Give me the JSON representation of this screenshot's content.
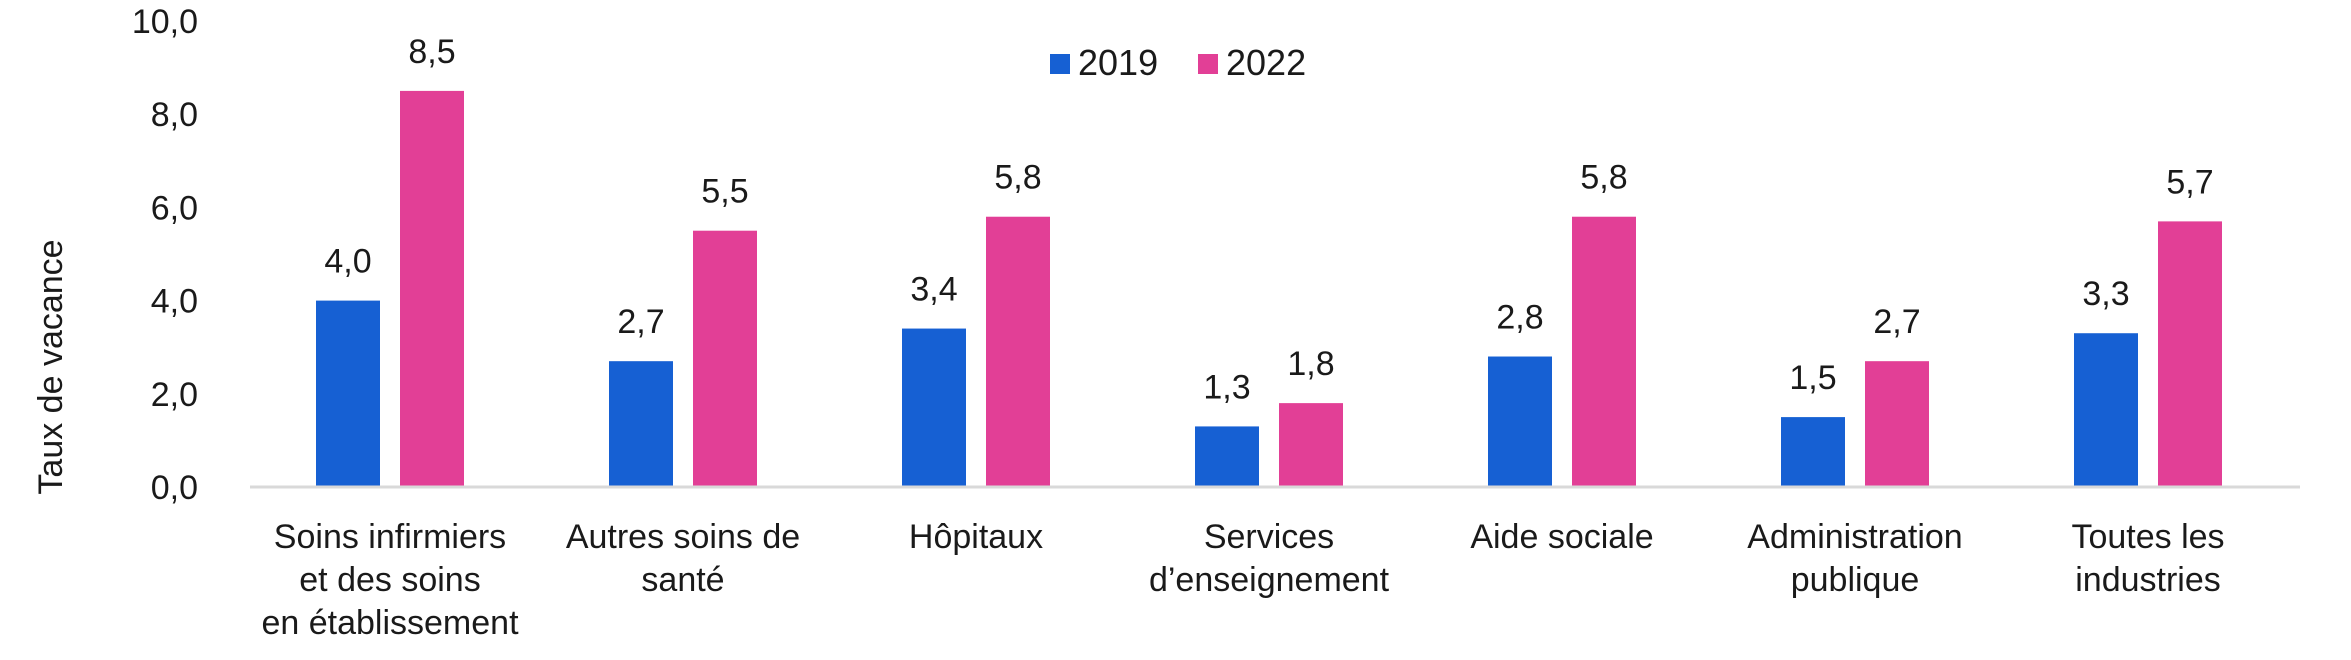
{
  "chart_data": {
    "type": "bar",
    "ylabel": "Taux de vacance",
    "ylim": [
      0,
      10
    ],
    "y_ticks": [
      "0,0",
      "2,0",
      "4,0",
      "6,0",
      "8,0",
      "10,0"
    ],
    "grid": false,
    "legend_position": "top-center",
    "categories": [
      [
        "Soins infirmiers",
        "et des soins",
        "en établissement"
      ],
      [
        "Autres soins de",
        "santé"
      ],
      [
        "Hôpitaux"
      ],
      [
        "Services",
        "d’enseignement"
      ],
      [
        "Aide sociale"
      ],
      [
        "Administration",
        "publique"
      ],
      [
        "Toutes les",
        "industries"
      ]
    ],
    "series": [
      {
        "name": "2019",
        "color": "#1660d3",
        "values": [
          4.0,
          2.7,
          3.4,
          1.3,
          2.8,
          1.5,
          3.3
        ],
        "labels": [
          "4,0",
          "2,7",
          "3,4",
          "1,3",
          "2,8",
          "1,5",
          "3,3"
        ]
      },
      {
        "name": "2022",
        "color": "#e23f96",
        "values": [
          8.5,
          5.5,
          5.8,
          1.8,
          5.8,
          2.7,
          5.7
        ],
        "labels": [
          "8,5",
          "5,5",
          "5,8",
          "1,8",
          "5,8",
          "2,7",
          "5,7"
        ]
      }
    ]
  }
}
